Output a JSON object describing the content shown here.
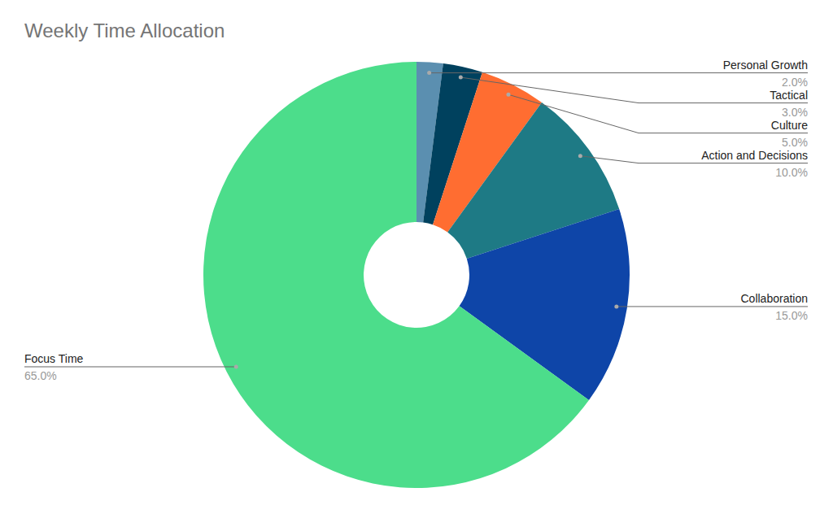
{
  "chart_data": {
    "type": "donut",
    "title": "Weekly Time Allocation",
    "categories": [
      "Personal Growth",
      "Tactical",
      "Culture",
      "Action and Decisions",
      "Collaboration",
      "Focus Time"
    ],
    "values": [
      2,
      3,
      5,
      10,
      15,
      65
    ],
    "value_labels": [
      "2.0%",
      "3.0%",
      "5.0%",
      "10.0%",
      "15.0%",
      "65.0%"
    ],
    "colors": [
      "#5b8fb0",
      "#00415e",
      "#ff6d31",
      "#1e7a85",
      "#0e45a8",
      "#4cdd8b"
    ],
    "data_labels": true
  }
}
